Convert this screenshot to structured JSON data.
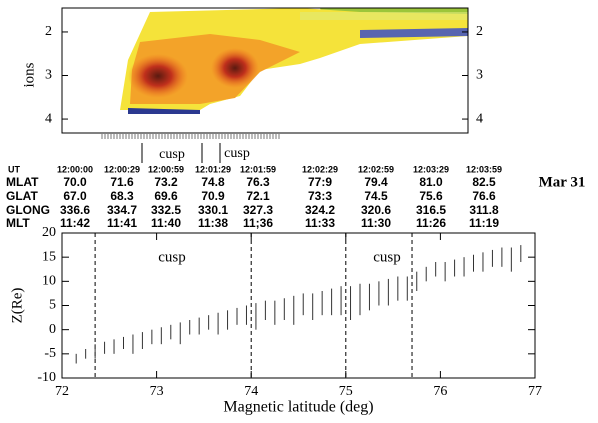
{
  "chart_data": [
    {
      "type": "spectrogram",
      "ylabel": "ions",
      "ylim": [
        1.45,
        4.32
      ],
      "yticks": [
        2,
        3,
        4
      ],
      "annotations": [
        "cusp",
        "cusp"
      ]
    },
    {
      "type": "segments",
      "ylabel": "Z(Re)",
      "xlabel": "Magnetic latitude (deg)",
      "xlim": [
        72,
        77
      ],
      "xticks": [
        72,
        73,
        74,
        75,
        76,
        77
      ],
      "ylim": [
        -10,
        20
      ],
      "yticks": [
        -10,
        -5,
        0,
        5,
        10,
        15,
        20
      ],
      "color": "#333333",
      "x": [
        72.15,
        72.25,
        72.35,
        72.45,
        72.55,
        72.65,
        72.75,
        72.85,
        72.95,
        73.05,
        73.15,
        73.25,
        73.35,
        73.45,
        73.55,
        73.65,
        73.75,
        73.85,
        73.95,
        74.05,
        74.15,
        74.25,
        74.35,
        74.45,
        74.55,
        74.65,
        74.75,
        74.85,
        74.95,
        75.05,
        75.15,
        75.25,
        75.35,
        75.45,
        75.55,
        75.65,
        75.75,
        75.85,
        75.95,
        76.05,
        76.15,
        76.25,
        76.35,
        76.45,
        76.55,
        76.65,
        76.75,
        76.85
      ],
      "high": [
        -5,
        -4,
        -3,
        -2.5,
        -2,
        -1.5,
        -1,
        -0.5,
        0,
        0.5,
        1,
        1.5,
        2,
        2.5,
        3,
        3.5,
        4,
        4.5,
        5,
        5.5,
        6,
        6,
        6.5,
        7,
        7.5,
        7.5,
        8,
        8.5,
        9,
        9,
        9.5,
        9.5,
        10,
        10.5,
        11,
        11,
        12,
        13,
        14,
        14,
        14.5,
        15,
        15.5,
        16,
        16.5,
        17,
        17,
        17.5
      ],
      "low": [
        -7,
        -6,
        -6,
        -5,
        -5,
        -4,
        -5,
        -4,
        -3,
        -3,
        -2,
        -3,
        -1,
        -1,
        0,
        -1,
        0,
        1,
        1,
        0,
        2,
        1,
        2,
        1,
        3,
        2,
        3,
        3,
        3,
        2,
        3,
        4,
        5,
        5,
        6,
        6,
        8,
        10,
        11,
        10,
        11,
        11,
        12,
        12,
        13,
        13,
        12,
        14
      ],
      "vlines": [
        72.35,
        74.0,
        75.0,
        75.7
      ],
      "annotations": [
        "cusp",
        "cusp"
      ]
    }
  ],
  "date": "Mar 31",
  "ephemeris": {
    "rows": [
      {
        "label": "UT",
        "values": [
          "12:00:00",
          "12:00:29",
          "12:00:59",
          "12:01:29",
          "12:01:59",
          "12:02:29",
          "12:02:59",
          "12:03:29",
          "12:03:59"
        ]
      },
      {
        "label": "MLAT",
        "values": [
          "70.0",
          "71.6",
          "73.2",
          "74.8",
          "76.3",
          "77:9",
          "79.4",
          "81.0",
          "82.5"
        ]
      },
      {
        "label": "GLAT",
        "values": [
          "67.0",
          "68.3",
          "69.6",
          "70.9",
          "72.1",
          "73:3",
          "74.5",
          "75.6",
          "76.6"
        ]
      },
      {
        "label": "GLONG",
        "values": [
          "336.6",
          "334.7",
          "332.5",
          "330.1",
          "327.3",
          "324.2",
          "320.6",
          "316.5",
          "311.8"
        ]
      },
      {
        "label": "MLT",
        "values": [
          "11:42",
          "11:41",
          "11:40",
          "11:38",
          "11;36",
          "11:33",
          "11:30",
          "11:26",
          "11:19"
        ]
      }
    ]
  }
}
